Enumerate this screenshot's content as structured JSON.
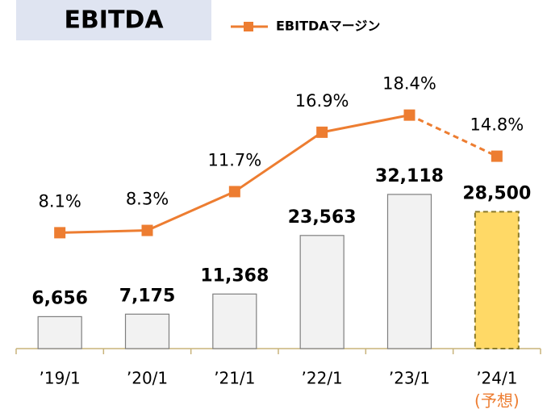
{
  "chart_data": {
    "type": "bar",
    "title": "EBITDA",
    "categories": [
      "’19/1",
      "’20/1",
      "’21/1",
      "’22/1",
      "’23/1",
      "’24/1"
    ],
    "category_notes": [
      null,
      null,
      null,
      null,
      null,
      "(予想)"
    ],
    "ylim": [
      0,
      40000
    ],
    "y2lim": [
      0,
      20
    ],
    "series": [
      {
        "name": "EBITDA",
        "type": "bar",
        "color": "#f2f2f2",
        "values": [
          6656,
          7175,
          11368,
          23563,
          32118,
          28500
        ],
        "value_labels": [
          "6,656",
          "7,175",
          "11,368",
          "23,563",
          "32,118",
          "28,500"
        ]
      },
      {
        "name": "EBITDAマージン",
        "type": "line",
        "axis": "y2",
        "color": "#ed7d31",
        "values": [
          8.1,
          8.3,
          11.7,
          16.9,
          18.4,
          14.8
        ],
        "value_labels": [
          "8.1%",
          "8.3%",
          "11.7%",
          "16.9%",
          "18.4%",
          "14.8%"
        ]
      }
    ]
  }
}
